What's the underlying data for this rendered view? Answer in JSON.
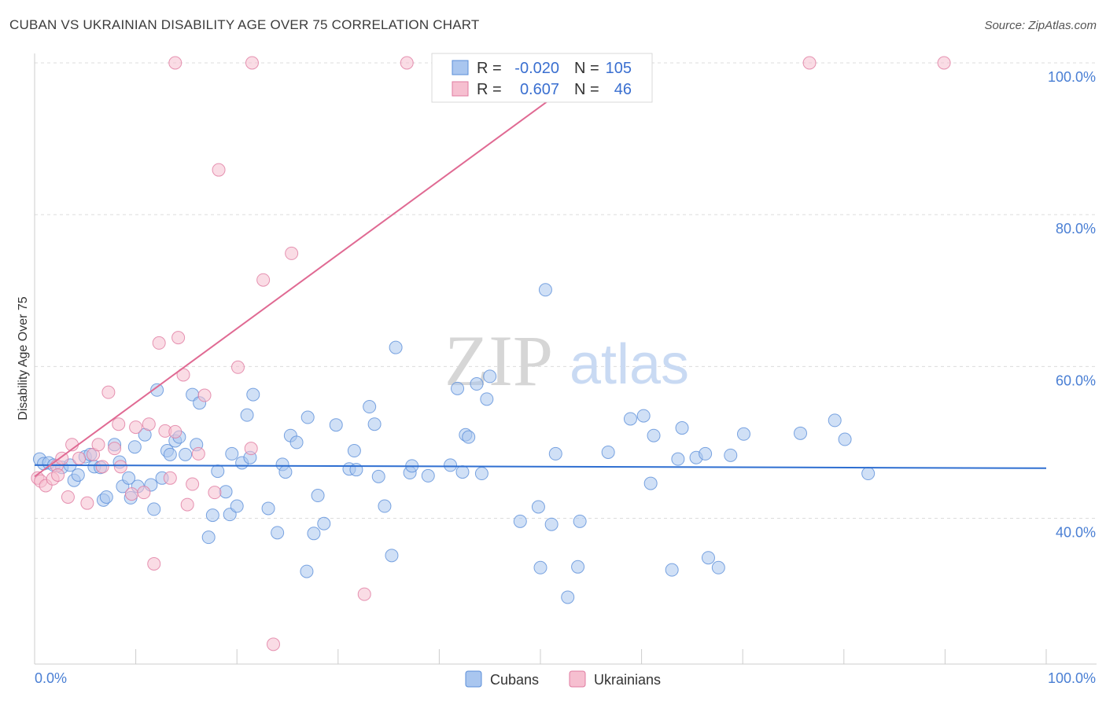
{
  "header": {
    "title": "CUBAN VS UKRAINIAN DISABILITY AGE OVER 75 CORRELATION CHART",
    "source": "Source: ZipAtlas.com"
  },
  "watermark": {
    "zip": "ZIP",
    "atlas": "atlas"
  },
  "chart_data": {
    "type": "scatter",
    "ylabel": "Disability Age Over 75",
    "xlim": [
      0,
      100
    ],
    "ylim": [
      20,
      102
    ],
    "x_tick_labels": [
      "0.0%",
      "100.0%"
    ],
    "y_ticks": [
      {
        "value": 40,
        "label": "40.0%"
      },
      {
        "value": 60,
        "label": "60.0%"
      },
      {
        "value": 80,
        "label": "80.0%"
      },
      {
        "value": 100,
        "label": "100.0%"
      }
    ],
    "grid": "horizontal dashed",
    "stats": [
      {
        "r_label": "R =",
        "r_value": "-0.020",
        "n_label": "N =",
        "n_value": "105",
        "color": "#a9c6ef",
        "stroke": "#5b8fd9"
      },
      {
        "r_label": "R =",
        "r_value": "0.607",
        "n_label": "N =",
        "n_value": "46",
        "color": "#f6bfd0",
        "stroke": "#e07ba0"
      }
    ],
    "series": [
      {
        "name": "Cubans",
        "fill": "#a9c6ef",
        "stroke": "#5b8fd9",
        "trend": {
          "x": [
            0,
            100
          ],
          "y": [
            47.0,
            46.6
          ],
          "color": "#2f6fd1"
        },
        "points": [
          [
            0.5,
            47.8
          ],
          [
            0.9,
            47.2
          ],
          [
            1.4,
            47.3
          ],
          [
            1.9,
            47.0
          ],
          [
            2.7,
            46.7
          ],
          [
            3.5,
            47.0
          ],
          [
            3.9,
            45.0
          ],
          [
            4.3,
            45.7
          ],
          [
            5.0,
            48.1
          ],
          [
            5.5,
            48.4
          ],
          [
            5.9,
            46.8
          ],
          [
            6.5,
            46.7
          ],
          [
            6.8,
            42.4
          ],
          [
            7.1,
            42.8
          ],
          [
            7.9,
            49.7
          ],
          [
            8.4,
            47.4
          ],
          [
            8.7,
            44.2
          ],
          [
            9.3,
            45.3
          ],
          [
            9.5,
            42.7
          ],
          [
            9.9,
            49.4
          ],
          [
            10.2,
            44.2
          ],
          [
            10.9,
            51.0
          ],
          [
            11.5,
            44.4
          ],
          [
            11.8,
            41.2
          ],
          [
            12.1,
            56.9
          ],
          [
            12.6,
            45.3
          ],
          [
            13.1,
            48.9
          ],
          [
            13.4,
            48.4
          ],
          [
            13.9,
            50.2
          ],
          [
            14.3,
            50.7
          ],
          [
            14.9,
            48.4
          ],
          [
            15.6,
            56.3
          ],
          [
            16.0,
            49.7
          ],
          [
            16.3,
            55.2
          ],
          [
            17.2,
            37.5
          ],
          [
            17.6,
            40.4
          ],
          [
            18.1,
            46.2
          ],
          [
            18.9,
            43.5
          ],
          [
            19.3,
            40.5
          ],
          [
            19.5,
            48.5
          ],
          [
            20.0,
            41.6
          ],
          [
            20.5,
            47.3
          ],
          [
            21.0,
            53.6
          ],
          [
            21.3,
            48.0
          ],
          [
            21.6,
            56.3
          ],
          [
            23.1,
            41.3
          ],
          [
            24.0,
            38.1
          ],
          [
            24.5,
            47.1
          ],
          [
            24.8,
            46.1
          ],
          [
            25.3,
            50.9
          ],
          [
            25.9,
            50.0
          ],
          [
            26.9,
            33.0
          ],
          [
            27.0,
            53.3
          ],
          [
            27.6,
            38.0
          ],
          [
            28.0,
            43.0
          ],
          [
            28.6,
            39.3
          ],
          [
            29.8,
            52.3
          ],
          [
            31.1,
            46.5
          ],
          [
            31.6,
            48.9
          ],
          [
            31.8,
            46.4
          ],
          [
            33.1,
            54.7
          ],
          [
            33.6,
            52.4
          ],
          [
            34.0,
            45.5
          ],
          [
            34.6,
            41.6
          ],
          [
            35.3,
            35.1
          ],
          [
            35.7,
            62.5
          ],
          [
            37.1,
            46.0
          ],
          [
            37.3,
            46.9
          ],
          [
            38.9,
            45.6
          ],
          [
            41.1,
            47.0
          ],
          [
            41.8,
            57.1
          ],
          [
            42.3,
            46.1
          ],
          [
            42.6,
            51.0
          ],
          [
            42.9,
            50.7
          ],
          [
            43.7,
            57.7
          ],
          [
            44.2,
            45.9
          ],
          [
            44.7,
            55.7
          ],
          [
            45.0,
            58.7
          ],
          [
            48.0,
            39.6
          ],
          [
            49.8,
            41.5
          ],
          [
            50.0,
            33.5
          ],
          [
            51.1,
            39.2
          ],
          [
            51.5,
            48.5
          ],
          [
            52.7,
            29.6
          ],
          [
            53.7,
            33.6
          ],
          [
            53.9,
            39.6
          ],
          [
            56.7,
            48.7
          ],
          [
            58.9,
            53.1
          ],
          [
            60.2,
            53.5
          ],
          [
            60.9,
            44.6
          ],
          [
            61.2,
            50.9
          ],
          [
            63.0,
            33.2
          ],
          [
            63.6,
            47.8
          ],
          [
            64.0,
            51.9
          ],
          [
            65.4,
            48.0
          ],
          [
            66.3,
            48.5
          ],
          [
            66.6,
            34.8
          ],
          [
            67.6,
            33.5
          ],
          [
            68.8,
            48.3
          ],
          [
            70.1,
            51.1
          ],
          [
            75.7,
            51.2
          ],
          [
            79.1,
            52.9
          ],
          [
            80.1,
            50.4
          ],
          [
            82.4,
            45.9
          ],
          [
            50.5,
            70.1
          ]
        ]
      },
      {
        "name": "Ukrainians",
        "fill": "#f6bfd0",
        "stroke": "#e07ba0",
        "trend": {
          "x": [
            0,
            100
          ],
          "y": [
            45.5,
            143.0
          ],
          "color": "#e06a93"
        },
        "points": [
          [
            0.3,
            45.3
          ],
          [
            0.6,
            44.9
          ],
          [
            1.1,
            44.3
          ],
          [
            1.8,
            45.2
          ],
          [
            2.2,
            46.9
          ],
          [
            2.7,
            47.9
          ],
          [
            3.3,
            42.8
          ],
          [
            3.7,
            49.7
          ],
          [
            4.4,
            47.9
          ],
          [
            5.2,
            42.0
          ],
          [
            5.8,
            48.4
          ],
          [
            6.3,
            49.7
          ],
          [
            6.7,
            46.8
          ],
          [
            7.3,
            56.6
          ],
          [
            7.9,
            49.2
          ],
          [
            8.3,
            52.4
          ],
          [
            8.5,
            46.8
          ],
          [
            9.6,
            43.2
          ],
          [
            10.0,
            52.0
          ],
          [
            10.8,
            43.4
          ],
          [
            11.3,
            52.4
          ],
          [
            11.8,
            34.0
          ],
          [
            12.3,
            63.1
          ],
          [
            12.9,
            51.5
          ],
          [
            13.4,
            45.3
          ],
          [
            13.9,
            51.4
          ],
          [
            14.2,
            63.8
          ],
          [
            14.7,
            58.9
          ],
          [
            15.1,
            41.8
          ],
          [
            15.6,
            44.5
          ],
          [
            16.2,
            48.5
          ],
          [
            16.8,
            56.2
          ],
          [
            17.8,
            43.4
          ],
          [
            18.2,
            85.9
          ],
          [
            20.1,
            59.9
          ],
          [
            21.4,
            49.2
          ],
          [
            22.6,
            71.4
          ],
          [
            23.6,
            23.4
          ],
          [
            25.4,
            74.9
          ],
          [
            32.6,
            30.0
          ],
          [
            13.9,
            100.0
          ],
          [
            21.5,
            100.0
          ],
          [
            36.8,
            100.0
          ],
          [
            76.6,
            100.0
          ],
          [
            89.9,
            100.0
          ],
          [
            2.3,
            45.7
          ]
        ]
      }
    ]
  }
}
